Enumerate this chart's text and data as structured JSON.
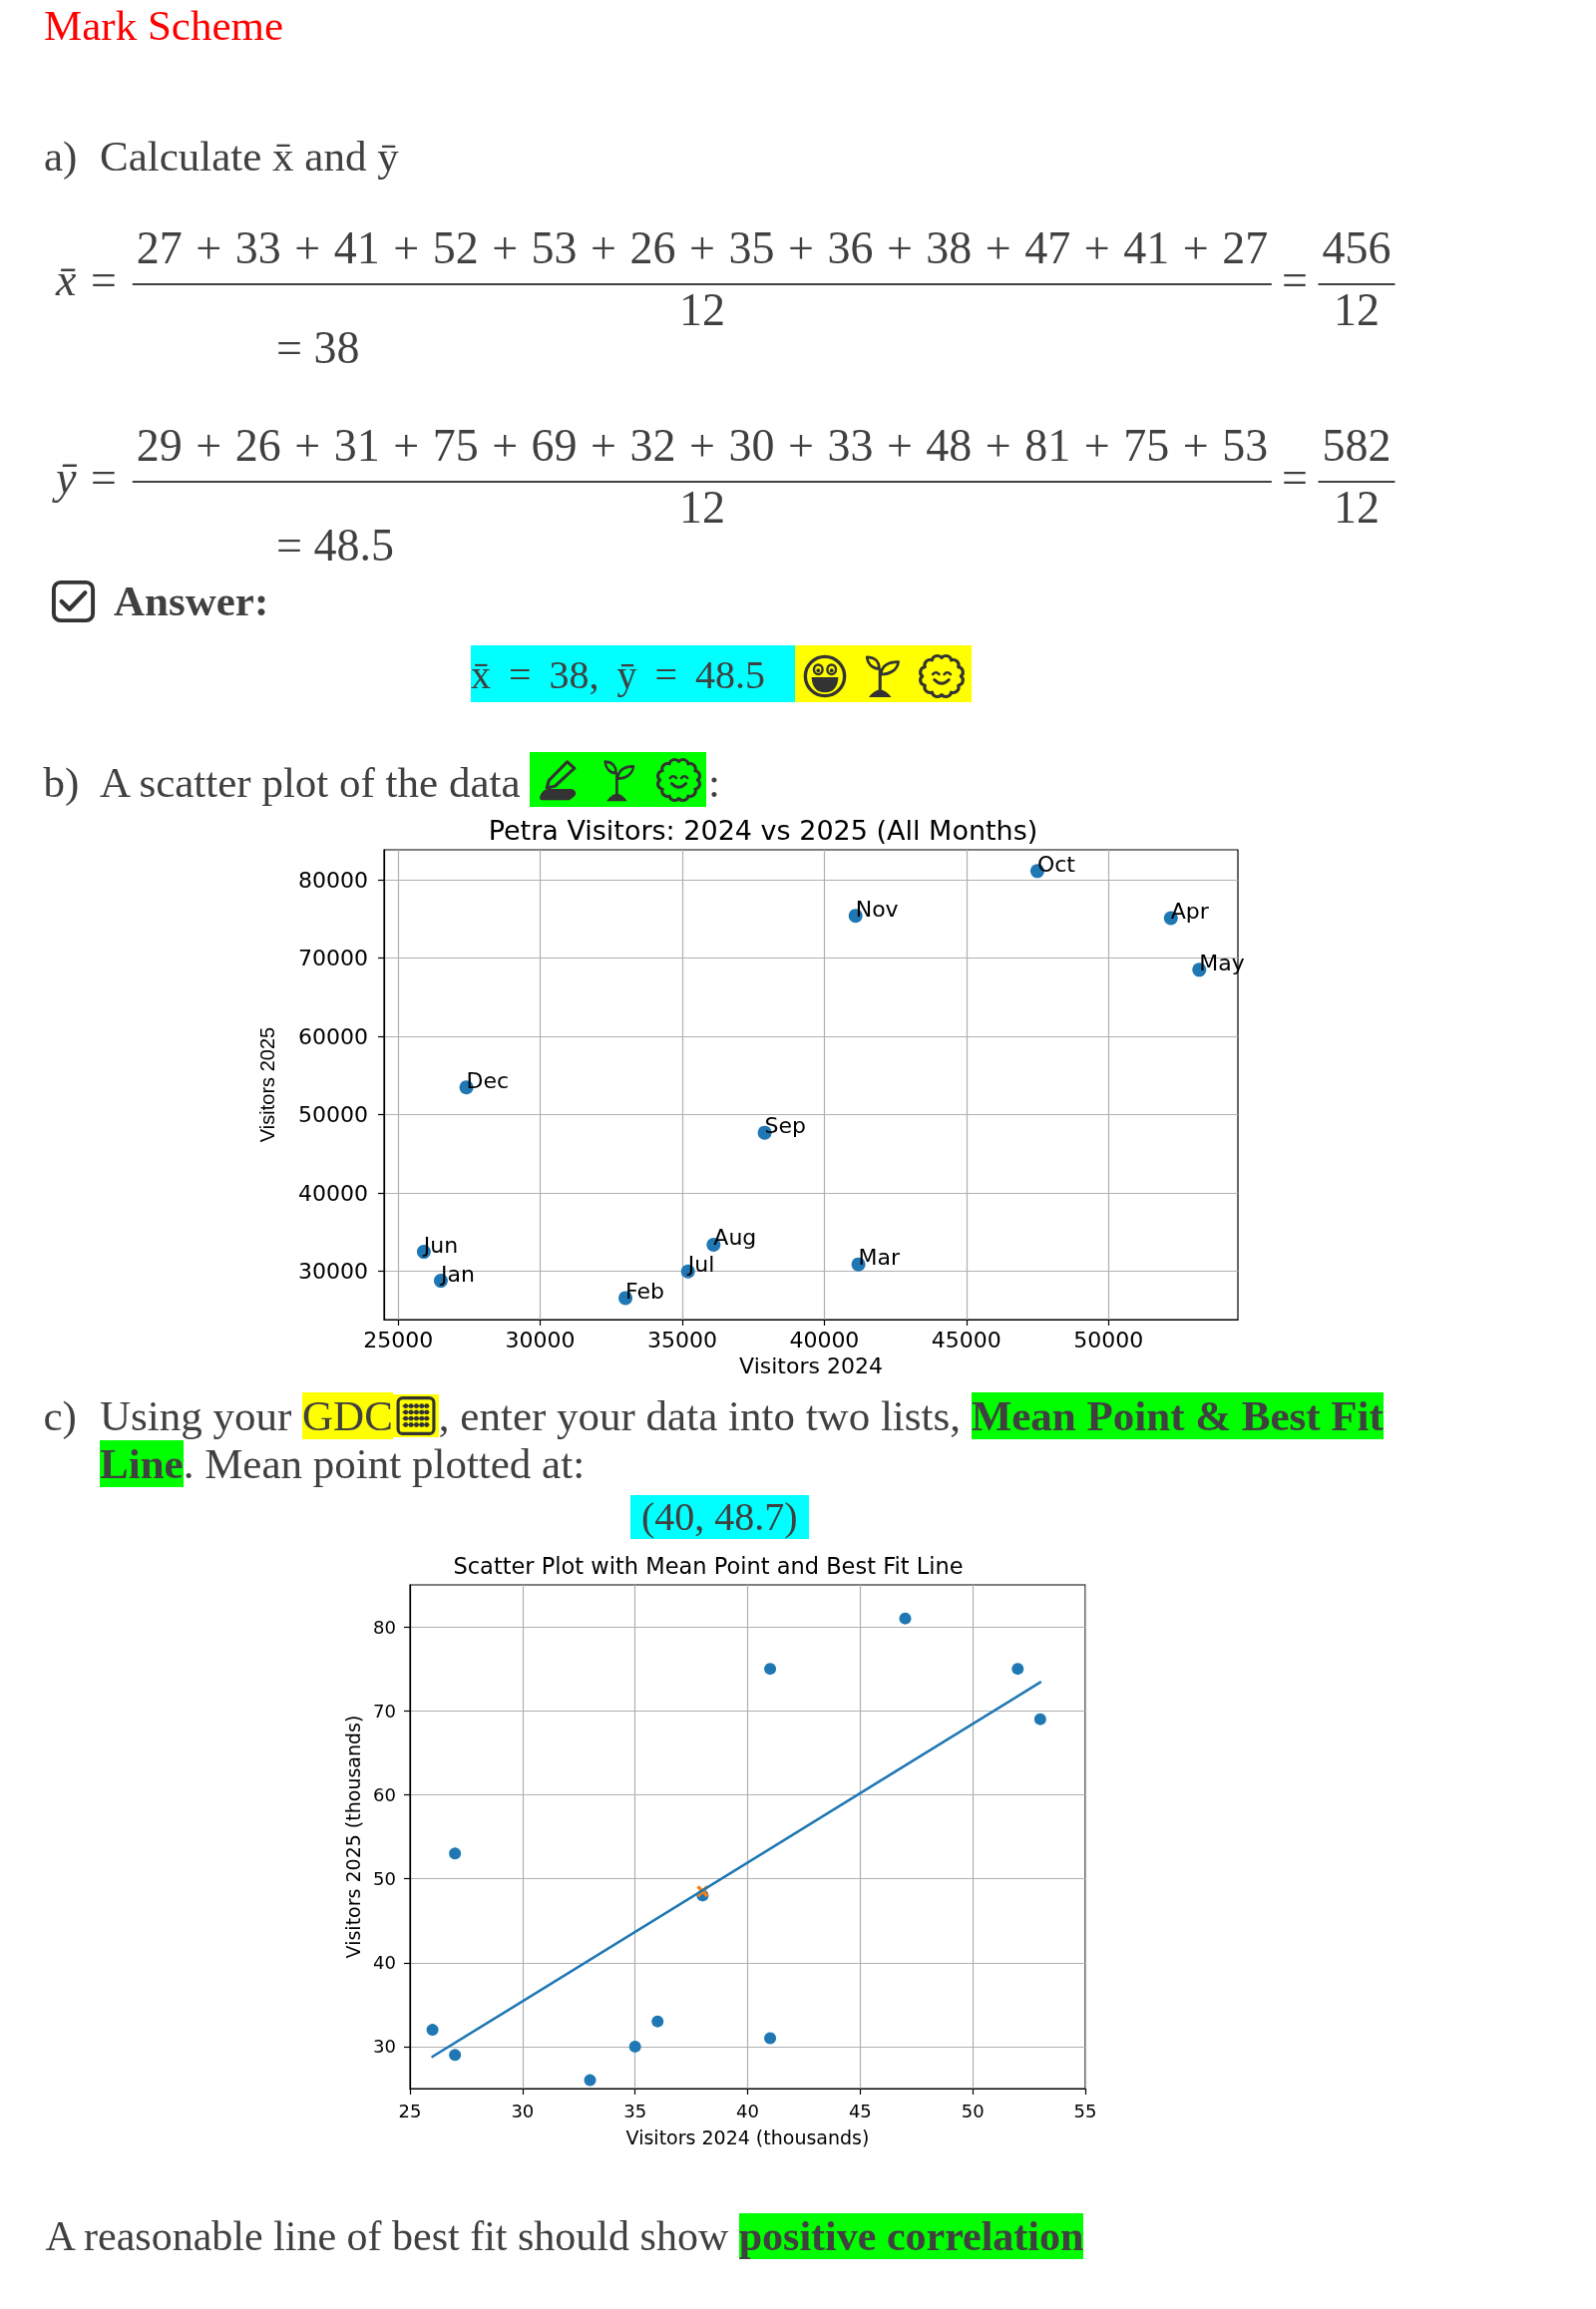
{
  "chart_data": [
    {
      "type": "other",
      "title": "Mark Scheme",
      "annotations": [
        "a)",
        "Calculate x̄ and ȳ",
        "x̄ =",
        "27 + 33 + 41 + 52 + 53 + 26 + 35 + 36 + 38 + 47 + 41 + 27",
        "12",
        "=",
        "456",
        "12",
        "= 38",
        "ȳ =",
        "29 + 26 + 31 + 75 + 69 + 32 + 30 + 33 + 48 + 81 + 75 + 53",
        "12",
        "=",
        "582",
        "12",
        "= 48.5",
        "Answer:",
        "x̄ = 38, ȳ = 48.5"
      ]
    },
    {
      "type": "scatter",
      "title": "Petra Visitors: 2024 vs 2025 (All Months)",
      "annotations": [
        "b)",
        "A scatter plot of the data",
        ":"
      ],
      "xlabel": "Visitors 2024",
      "ylabel": "Visitors 2025",
      "xlim": [
        24500,
        54560
      ],
      "ylim": [
        23850,
        83820
      ],
      "xticks": [
        25000,
        30000,
        35000,
        40000,
        45000,
        50000
      ],
      "yticks": [
        30000,
        40000,
        50000,
        60000,
        70000,
        80000
      ],
      "grid": true,
      "marker": "circle",
      "series": [
        {
          "color": "#1f77b4",
          "x": [
            26500,
            33000,
            41200,
            52200,
            53200,
            25900,
            35200,
            36100,
            37900,
            47500,
            41100,
            27400
          ],
          "values": [
            28800,
            26600,
            30900,
            75100,
            68500,
            32500,
            30000,
            33400,
            47700,
            81100,
            75400,
            53500
          ],
          "value_labels": [
            "Jan",
            "Feb",
            "Mar",
            "Apr",
            "May",
            "Jun",
            "Jul",
            "Aug",
            "Sep",
            "Oct",
            "Nov",
            "Dec"
          ]
        }
      ]
    },
    {
      "type": "scatter",
      "title": "Scatter Plot with Mean Point and Best Fit Line",
      "annotations": [
        "c)",
        "Using your",
        "GDC",
        ", enter your data into two lists,",
        "Mean Point & Best Fit",
        "Line",
        ". Mean point plotted at:",
        "(40, 48.7)",
        "A reasonable line of best fit should show",
        "positive correlation"
      ],
      "xlabel": "Visitors 2024 (thousands)",
      "ylabel": "Visitors 2025 (thousands)",
      "xlim": [
        25,
        55
      ],
      "ylim": [
        25,
        85
      ],
      "xticks": [
        25,
        30,
        35,
        40,
        45,
        50,
        55
      ],
      "yticks": [
        30,
        40,
        50,
        60,
        70,
        80
      ],
      "grid": true,
      "marker": "circle",
      "series": [
        {
          "color": "#1f77b4",
          "x": [
            27,
            33,
            41,
            52,
            53,
            26,
            35,
            36,
            38,
            47,
            41,
            27
          ],
          "values": [
            29,
            26,
            31,
            75,
            69,
            32,
            30,
            33,
            48,
            81,
            75,
            53
          ]
        },
        {
          "color": "#ff7f0e",
          "x": [
            38
          ],
          "values": [
            48.5
          ],
          "marker": "cross"
        },
        {
          "type": "line",
          "color": "#1f77b4",
          "x": [
            26,
            53
          ],
          "values": [
            28.8,
            73.4
          ],
          "marker": "none",
          "line_style": "solid"
        }
      ]
    }
  ]
}
